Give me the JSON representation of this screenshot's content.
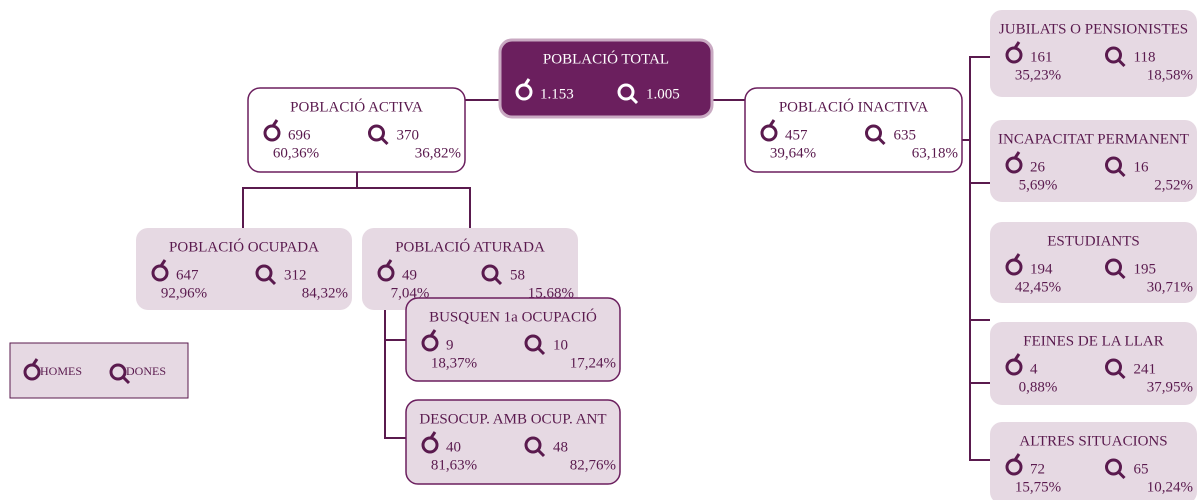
{
  "nodes": [
    {
      "label": "POBLACIÓ TOTAL",
      "men": "1.153",
      "women": "1.005"
    },
    {
      "label": "POBLACIÓ ACTIVA",
      "men": "696",
      "men_pct": "60,36%",
      "women": "370",
      "women_pct": "36,82%"
    },
    {
      "label": "POBLACIÓ INACTIVA",
      "men": "457",
      "men_pct": "39,64%",
      "women": "635",
      "women_pct": "63,18%"
    },
    {
      "label": "POBLACIÓ OCUPADA",
      "men": "647",
      "men_pct": "92,96%",
      "women": "312",
      "women_pct": "84,32%"
    },
    {
      "label": "POBLACIÓ ATURADA",
      "men": "49",
      "men_pct": "7,04%",
      "women": "58",
      "women_pct": "15,68%"
    },
    {
      "label": "BUSQUEN 1a OCUPACIÓ",
      "men": "9",
      "men_pct": "18,37%",
      "women": "10",
      "women_pct": "17,24%"
    },
    {
      "label": "DESOCUP. AMB OCUP. ANT",
      "men": "40",
      "men_pct": "81,63%",
      "women": "48",
      "women_pct": "82,76%"
    },
    {
      "label": "JUBILATS O PENSIONISTES",
      "men": "161",
      "men_pct": "35,23%",
      "women": "118",
      "women_pct": "18,58%"
    },
    {
      "label": "INCAPACITAT PERMANENT",
      "men": "26",
      "men_pct": "5,69%",
      "women": "16",
      "women_pct": "2,52%"
    },
    {
      "label": "ESTUDIANTS",
      "men": "194",
      "men_pct": "42,45%",
      "women": "195",
      "women_pct": "30,71%"
    },
    {
      "label": "FEINES DE LA LLAR",
      "men": "4",
      "men_pct": "0,88%",
      "women": "241",
      "women_pct": "37,95%"
    },
    {
      "label": "ALTRES SITUACIONS",
      "men": "72",
      "men_pct": "15,75%",
      "women": "65",
      "women_pct": "10,24%"
    }
  ],
  "legend": {
    "men": "HOMES",
    "women": "DONES"
  }
}
